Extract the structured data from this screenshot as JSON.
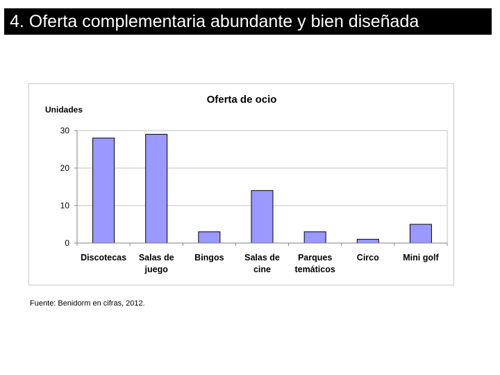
{
  "slide": {
    "title": "4. Oferta complementaria abundante y bien diseñada",
    "source": "Fuente: Benidorm en cifras, 2012."
  },
  "chart_data": {
    "type": "bar",
    "title": "Oferta de ocio",
    "ylabel": "Unidades",
    "xlabel": "",
    "categories": [
      [
        "Discotecas"
      ],
      [
        "Salas de",
        "juego"
      ],
      [
        "Bingos"
      ],
      [
        "Salas de",
        "cine"
      ],
      [
        "Parques",
        "temáticos"
      ],
      [
        "Circo"
      ],
      [
        "Mini golf"
      ]
    ],
    "values": [
      28,
      29,
      3,
      14,
      3,
      1,
      5
    ],
    "ylim": [
      0,
      30
    ],
    "yticks": [
      0,
      10,
      20,
      30
    ],
    "grid": true,
    "legend": "none",
    "colors": {
      "bar_fill": "#9999ff",
      "bar_stroke": "#000000",
      "grid": "#c0c0c0",
      "axis": "#808080"
    }
  }
}
